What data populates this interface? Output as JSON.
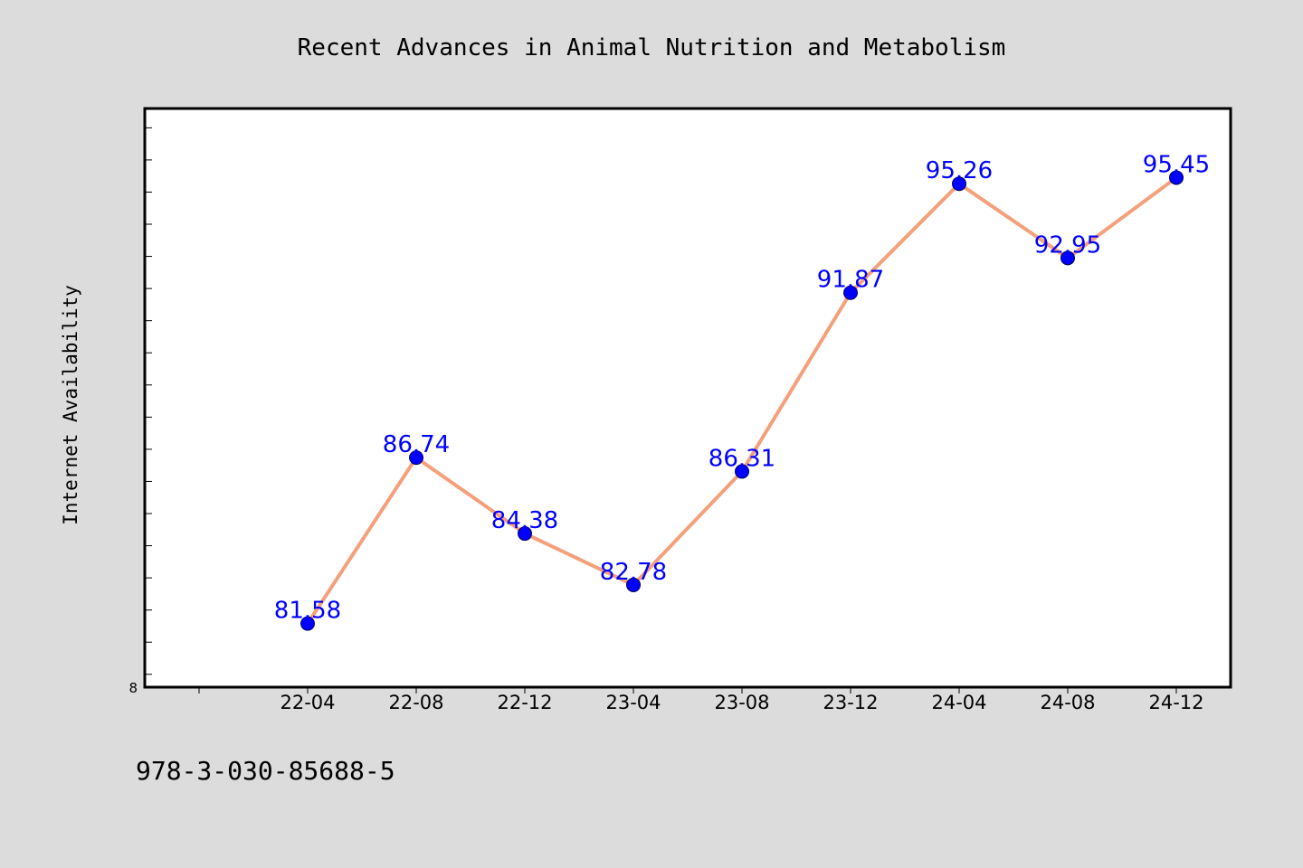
{
  "chart_data": {
    "type": "line",
    "title": "Recent Advances in Animal Nutrition and Metabolism",
    "xlabel": "",
    "ylabel": "Internet Availability",
    "categories": [
      "22-04",
      "22-08",
      "22-12",
      "23-04",
      "23-08",
      "23-12",
      "24-04",
      "24-08",
      "24-12"
    ],
    "series": [
      {
        "values": [
          81.58,
          86.74,
          84.38,
          82.78,
          86.31,
          91.87,
          95.26,
          92.95,
          95.45
        ],
        "data_labels": [
          "81.58",
          "86.74",
          "84.38",
          "82.78",
          "86.31",
          "91.87",
          "95.26",
          "92.95",
          "95.45"
        ]
      }
    ],
    "y_tick_label": "8",
    "x_range": [
      "22-00",
      "24-12"
    ],
    "ylim": [
      79.6,
      97.6
    ],
    "grid": false,
    "legend": "none",
    "colors": {
      "line": "#f4a07a",
      "marker": "#0000ff",
      "data_label": "#0000ff",
      "background": "#dcdcdc",
      "plot_area": "#ffffff"
    }
  },
  "footer_text": "978-3-030-85688-5"
}
